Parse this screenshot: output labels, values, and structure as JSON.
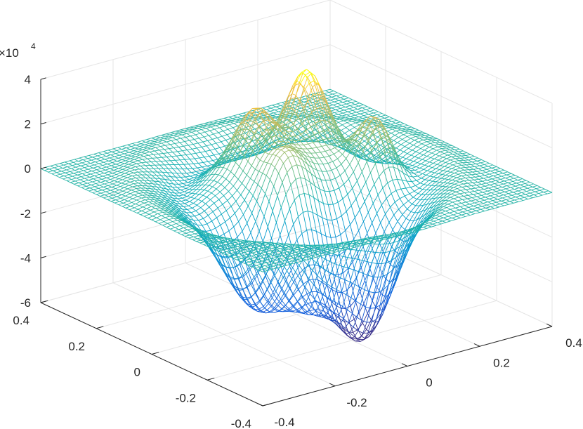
{
  "chart_data": {
    "type": "mesh",
    "title": "",
    "xlabel": "",
    "ylabel": "",
    "zlabel": "",
    "z_exponent_label": "×10",
    "z_exponent_power": "4",
    "xlim": [
      -0.4,
      0.4
    ],
    "ylim": [
      -0.4,
      0.4
    ],
    "zlim": [
      -6,
      4
    ],
    "x_ticks": [
      "-0.4",
      "-0.2",
      "0",
      "0.2",
      "0.4"
    ],
    "y_ticks": [
      "-0.4",
      "-0.2",
      "0",
      "0.2",
      "0.4"
    ],
    "z_ticks": [
      "-6",
      "-4",
      "-2",
      "0",
      "2",
      "4"
    ],
    "grid": true,
    "colormap": "parula",
    "grid_resolution": 60,
    "surface_description": "mesh surface, flat near 0 at edges with a ring dip; four peaks up to about 3.5e4 in the center region and a trough down to about -5.5e4",
    "features": {
      "peaks_z": [
        3.5,
        2.6,
        2.1,
        2.4
      ],
      "trough_min_z": -5.6,
      "ring_dip_z": -0.6
    }
  }
}
